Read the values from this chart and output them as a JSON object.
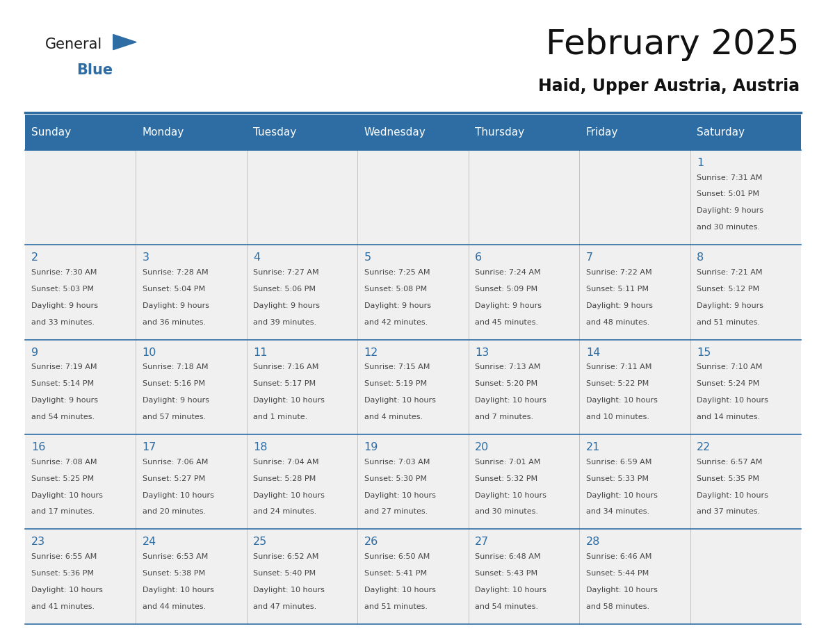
{
  "title": "February 2025",
  "subtitle": "Haid, Upper Austria, Austria",
  "header_bg": "#2E6DA4",
  "header_text": "#FFFFFF",
  "cell_bg_light": "#F0F0F0",
  "day_number_color": "#2E6DA4",
  "text_color": "#444444",
  "days_of_week": [
    "Sunday",
    "Monday",
    "Tuesday",
    "Wednesday",
    "Thursday",
    "Friday",
    "Saturday"
  ],
  "calendar_data": [
    [
      null,
      null,
      null,
      null,
      null,
      null,
      {
        "day": 1,
        "sunrise": "7:31 AM",
        "sunset": "5:01 PM",
        "daylight1": "9 hours",
        "daylight2": "and 30 minutes."
      }
    ],
    [
      {
        "day": 2,
        "sunrise": "7:30 AM",
        "sunset": "5:03 PM",
        "daylight1": "9 hours",
        "daylight2": "and 33 minutes."
      },
      {
        "day": 3,
        "sunrise": "7:28 AM",
        "sunset": "5:04 PM",
        "daylight1": "9 hours",
        "daylight2": "and 36 minutes."
      },
      {
        "day": 4,
        "sunrise": "7:27 AM",
        "sunset": "5:06 PM",
        "daylight1": "9 hours",
        "daylight2": "and 39 minutes."
      },
      {
        "day": 5,
        "sunrise": "7:25 AM",
        "sunset": "5:08 PM",
        "daylight1": "9 hours",
        "daylight2": "and 42 minutes."
      },
      {
        "day": 6,
        "sunrise": "7:24 AM",
        "sunset": "5:09 PM",
        "daylight1": "9 hours",
        "daylight2": "and 45 minutes."
      },
      {
        "day": 7,
        "sunrise": "7:22 AM",
        "sunset": "5:11 PM",
        "daylight1": "9 hours",
        "daylight2": "and 48 minutes."
      },
      {
        "day": 8,
        "sunrise": "7:21 AM",
        "sunset": "5:12 PM",
        "daylight1": "9 hours",
        "daylight2": "and 51 minutes."
      }
    ],
    [
      {
        "day": 9,
        "sunrise": "7:19 AM",
        "sunset": "5:14 PM",
        "daylight1": "9 hours",
        "daylight2": "and 54 minutes."
      },
      {
        "day": 10,
        "sunrise": "7:18 AM",
        "sunset": "5:16 PM",
        "daylight1": "9 hours",
        "daylight2": "and 57 minutes."
      },
      {
        "day": 11,
        "sunrise": "7:16 AM",
        "sunset": "5:17 PM",
        "daylight1": "10 hours",
        "daylight2": "and 1 minute."
      },
      {
        "day": 12,
        "sunrise": "7:15 AM",
        "sunset": "5:19 PM",
        "daylight1": "10 hours",
        "daylight2": "and 4 minutes."
      },
      {
        "day": 13,
        "sunrise": "7:13 AM",
        "sunset": "5:20 PM",
        "daylight1": "10 hours",
        "daylight2": "and 7 minutes."
      },
      {
        "day": 14,
        "sunrise": "7:11 AM",
        "sunset": "5:22 PM",
        "daylight1": "10 hours",
        "daylight2": "and 10 minutes."
      },
      {
        "day": 15,
        "sunrise": "7:10 AM",
        "sunset": "5:24 PM",
        "daylight1": "10 hours",
        "daylight2": "and 14 minutes."
      }
    ],
    [
      {
        "day": 16,
        "sunrise": "7:08 AM",
        "sunset": "5:25 PM",
        "daylight1": "10 hours",
        "daylight2": "and 17 minutes."
      },
      {
        "day": 17,
        "sunrise": "7:06 AM",
        "sunset": "5:27 PM",
        "daylight1": "10 hours",
        "daylight2": "and 20 minutes."
      },
      {
        "day": 18,
        "sunrise": "7:04 AM",
        "sunset": "5:28 PM",
        "daylight1": "10 hours",
        "daylight2": "and 24 minutes."
      },
      {
        "day": 19,
        "sunrise": "7:03 AM",
        "sunset": "5:30 PM",
        "daylight1": "10 hours",
        "daylight2": "and 27 minutes."
      },
      {
        "day": 20,
        "sunrise": "7:01 AM",
        "sunset": "5:32 PM",
        "daylight1": "10 hours",
        "daylight2": "and 30 minutes."
      },
      {
        "day": 21,
        "sunrise": "6:59 AM",
        "sunset": "5:33 PM",
        "daylight1": "10 hours",
        "daylight2": "and 34 minutes."
      },
      {
        "day": 22,
        "sunrise": "6:57 AM",
        "sunset": "5:35 PM",
        "daylight1": "10 hours",
        "daylight2": "and 37 minutes."
      }
    ],
    [
      {
        "day": 23,
        "sunrise": "6:55 AM",
        "sunset": "5:36 PM",
        "daylight1": "10 hours",
        "daylight2": "and 41 minutes."
      },
      {
        "day": 24,
        "sunrise": "6:53 AM",
        "sunset": "5:38 PM",
        "daylight1": "10 hours",
        "daylight2": "and 44 minutes."
      },
      {
        "day": 25,
        "sunrise": "6:52 AM",
        "sunset": "5:40 PM",
        "daylight1": "10 hours",
        "daylight2": "and 47 minutes."
      },
      {
        "day": 26,
        "sunrise": "6:50 AM",
        "sunset": "5:41 PM",
        "daylight1": "10 hours",
        "daylight2": "and 51 minutes."
      },
      {
        "day": 27,
        "sunrise": "6:48 AM",
        "sunset": "5:43 PM",
        "daylight1": "10 hours",
        "daylight2": "and 54 minutes."
      },
      {
        "day": 28,
        "sunrise": "6:46 AM",
        "sunset": "5:44 PM",
        "daylight1": "10 hours",
        "daylight2": "and 58 minutes."
      },
      null
    ]
  ],
  "logo_general_color": "#1a1a1a",
  "logo_blue_color": "#2E6DA4",
  "logo_triangle_color": "#2E6DA4"
}
